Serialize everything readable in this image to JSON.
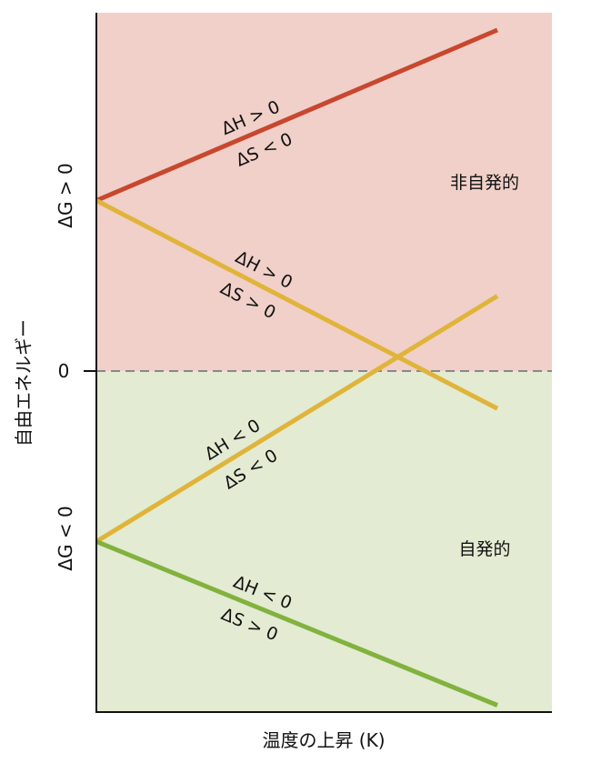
{
  "chart_data": {
    "type": "line",
    "title": "",
    "xlabel": "温度の上昇 (K)",
    "ylabel": "自由エネルギー",
    "xlim": [
      0,
      1
    ],
    "ylim": [
      -1,
      1
    ],
    "grid": false,
    "zero_tick": "0",
    "y_region_labels": {
      "positive": "ΔG > 0",
      "negative": "ΔG < 0"
    },
    "regions": [
      {
        "name": "非自発的",
        "y_range": [
          0,
          1
        ],
        "color": "#f0d0c8"
      },
      {
        "name": "自発的",
        "y_range": [
          -1,
          0
        ],
        "color": "#e3ebd2"
      }
    ],
    "zero_line_color": "#888888",
    "series": [
      {
        "line1": "ΔH > 0",
        "line2": "ΔS < 0",
        "color": "#c8472f",
        "x": [
          0,
          1
        ],
        "y": [
          0.5,
          1.0
        ]
      },
      {
        "line1": "ΔH > 0",
        "line2": "ΔS > 0",
        "color": "#e0b43a",
        "x": [
          0,
          1
        ],
        "y": [
          0.5,
          -0.11
        ]
      },
      {
        "line1": "ΔH < 0",
        "line2": "ΔS < 0",
        "color": "#e0b43a",
        "x": [
          0,
          1
        ],
        "y": [
          -0.5,
          0.22
        ]
      },
      {
        "line1": "ΔH < 0",
        "line2": "ΔS > 0",
        "color": "#82b23e",
        "x": [
          0,
          1
        ],
        "y": [
          -0.5,
          -0.98
        ]
      }
    ]
  }
}
